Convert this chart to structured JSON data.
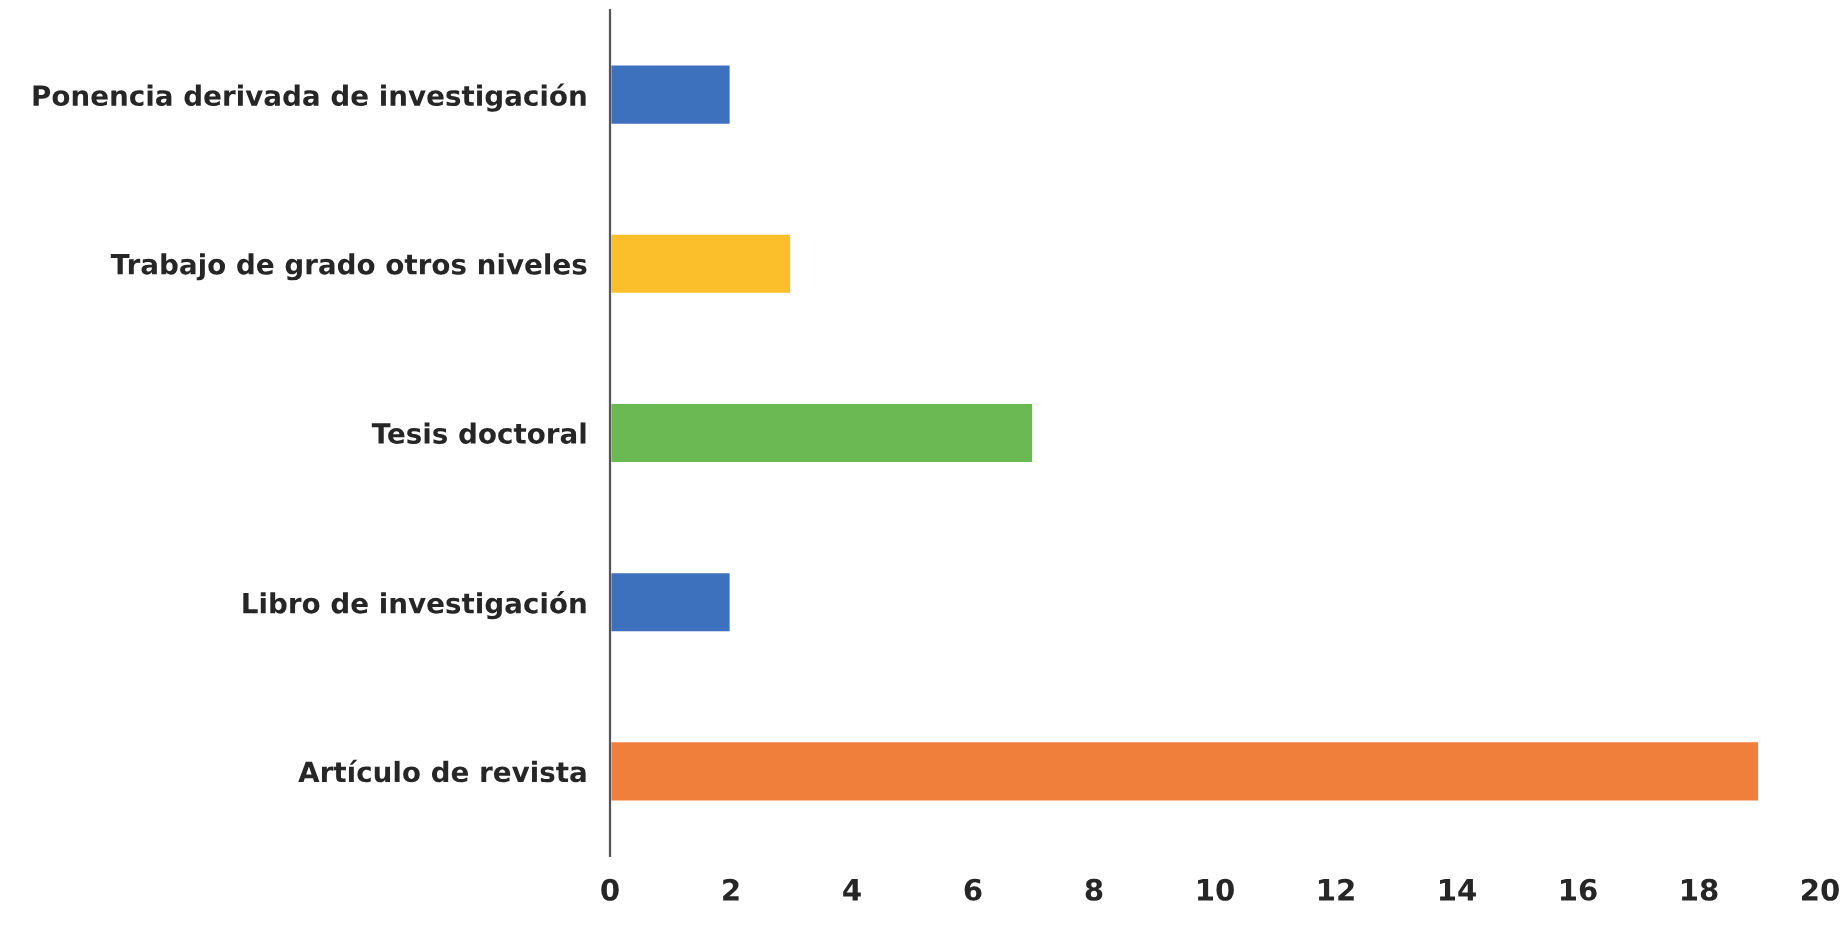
{
  "chart_data": {
    "type": "bar",
    "orientation": "horizontal",
    "categories": [
      "Ponencia derivada de investigación",
      "Trabajo de grado otros niveles",
      "Tesis doctoral",
      "Libro de investigación",
      "Artículo de revista"
    ],
    "values": [
      2,
      3,
      7,
      2,
      19
    ],
    "colors": [
      "#3d70bd",
      "#fbbf2c",
      "#6bb953",
      "#3d70bd",
      "#f17f3c"
    ],
    "xlim": [
      0,
      20
    ],
    "xticks": [
      0,
      2,
      4,
      6,
      8,
      10,
      12,
      14,
      16,
      18,
      20
    ],
    "grid": false
  }
}
